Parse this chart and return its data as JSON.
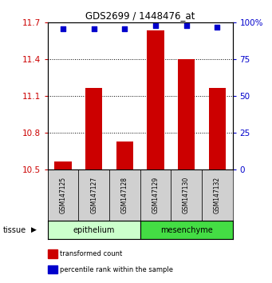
{
  "title": "GDS2699 / 1448476_at",
  "samples": [
    "GSM147125",
    "GSM147127",
    "GSM147128",
    "GSM147129",
    "GSM147130",
    "GSM147132"
  ],
  "bar_values": [
    10.57,
    11.17,
    10.73,
    11.64,
    11.4,
    11.17
  ],
  "percentile_values": [
    96,
    96,
    96,
    98,
    98,
    97
  ],
  "bar_bottom": 10.5,
  "bar_color": "#cc0000",
  "dot_color": "#0000cc",
  "ylim_left": [
    10.5,
    11.7
  ],
  "ylim_right": [
    0,
    100
  ],
  "yticks_left": [
    10.5,
    10.8,
    11.1,
    11.4,
    11.7
  ],
  "yticks_right": [
    0,
    25,
    50,
    75,
    100
  ],
  "ytick_labels_left": [
    "10.5",
    "10.8",
    "11.1",
    "11.4",
    "11.7"
  ],
  "ytick_labels_right": [
    "0",
    "25",
    "50",
    "75",
    "100%"
  ],
  "groups": [
    {
      "label": "epithelium",
      "indices": [
        0,
        1,
        2
      ],
      "color": "#ccffcc"
    },
    {
      "label": "mesenchyme",
      "indices": [
        3,
        4,
        5
      ],
      "color": "#44dd44"
    }
  ],
  "tissue_label": "tissue",
  "legend_items": [
    {
      "label": "transformed count",
      "color": "#cc0000"
    },
    {
      "label": "percentile rank within the sample",
      "color": "#0000cc"
    }
  ],
  "bar_width": 0.55,
  "tick_label_color_left": "#cc0000",
  "tick_label_color_right": "#0000cc",
  "sample_box_color": "#d0d0d0"
}
